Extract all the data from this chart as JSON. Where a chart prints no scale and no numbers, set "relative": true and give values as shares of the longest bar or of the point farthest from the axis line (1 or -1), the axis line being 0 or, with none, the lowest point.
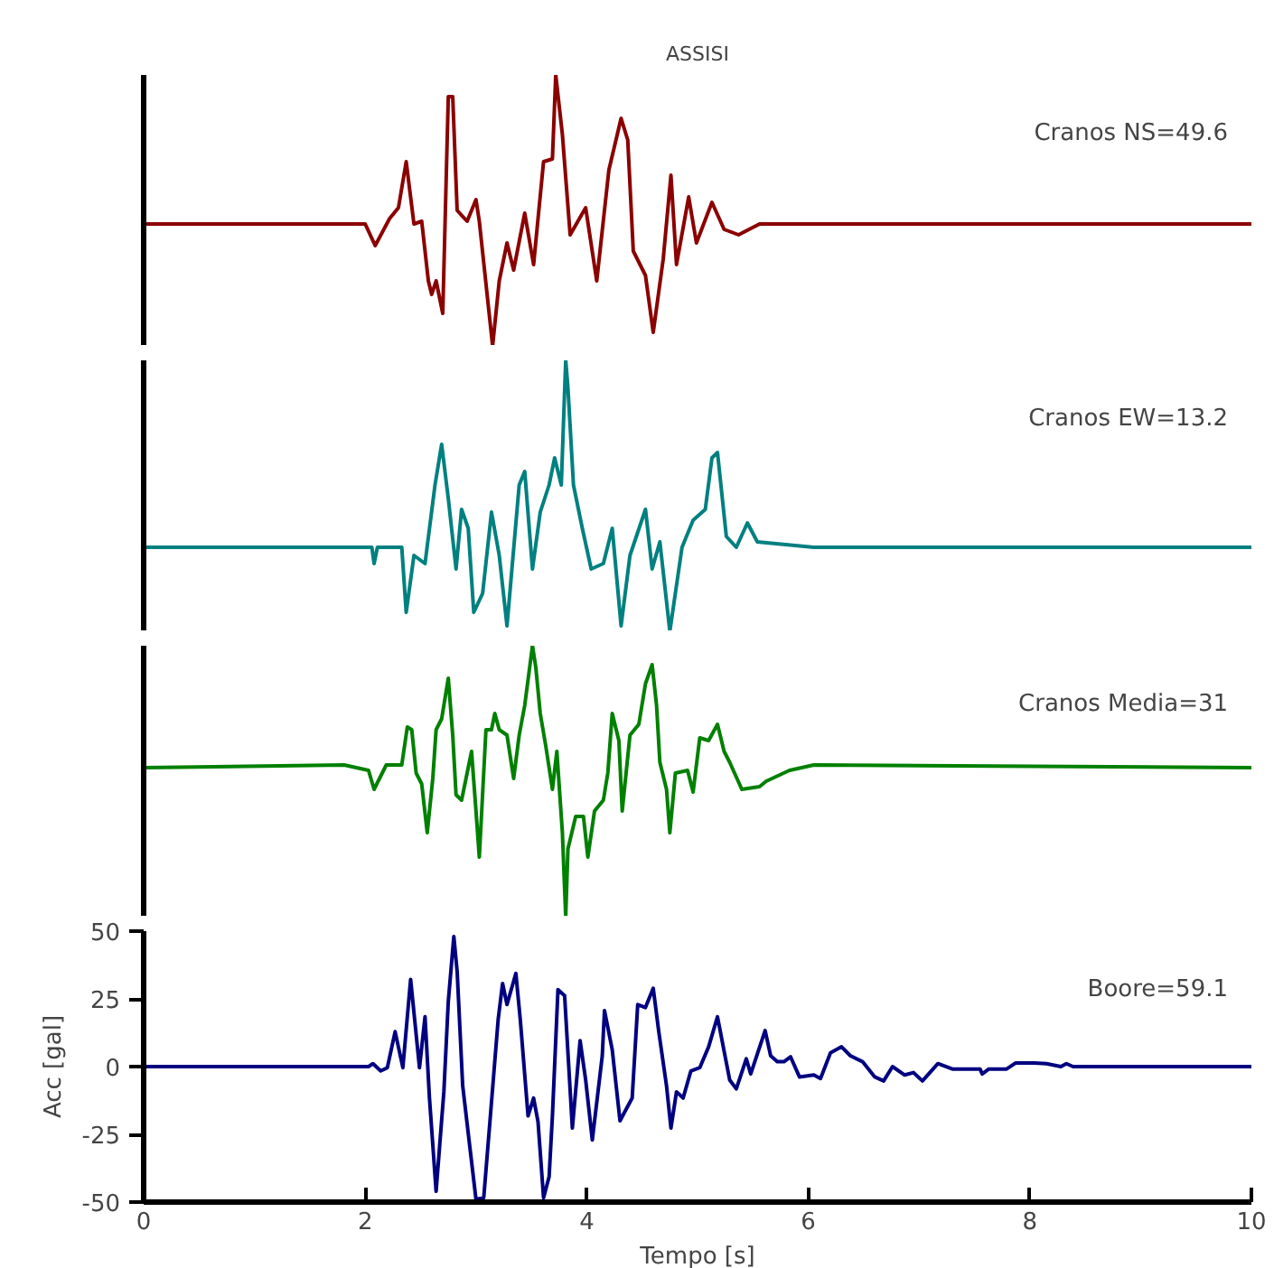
{
  "chart_data": [
    {
      "type": "line",
      "title": "ASSISI",
      "xlim": [
        0,
        10
      ],
      "relative": true,
      "tick_labels": false,
      "annotations": [
        "Cranos NS=49.6"
      ],
      "x": [
        0,
        1.81,
        2.0,
        2.09,
        2.22,
        2.3,
        2.37,
        2.44,
        2.51,
        2.57,
        2.6,
        2.64,
        2.7,
        2.75,
        2.79,
        2.83,
        2.92,
        3.0,
        3.03,
        3.15,
        3.21,
        3.28,
        3.34,
        3.44,
        3.52,
        3.61,
        3.69,
        3.72,
        3.78,
        3.85,
        3.99,
        4.09,
        4.2,
        4.31,
        4.37,
        4.42,
        4.53,
        4.6,
        4.69,
        4.76,
        4.81,
        4.92,
        4.99,
        5.13,
        5.24,
        5.37,
        5.56,
        6.05,
        10
      ],
      "series": [
        {
          "color": "#8b0000",
          "values": [
            0.45,
            0.45,
            0.45,
            0.37,
            0.47,
            0.51,
            0.68,
            0.45,
            0.46,
            0.24,
            0.19,
            0.24,
            0.12,
            0.92,
            0.92,
            0.5,
            0.46,
            0.54,
            0.46,
            0,
            0.24,
            0.38,
            0.28,
            0.49,
            0.3,
            0.68,
            0.69,
            1,
            0.78,
            0.41,
            0.51,
            0.24,
            0.65,
            0.84,
            0.76,
            0.35,
            0.26,
            0.05,
            0.32,
            0.63,
            0.3,
            0.55,
            0.38,
            0.53,
            0.43,
            0.41,
            0.45,
            0.45,
            0.45
          ]
        }
      ]
    },
    {
      "type": "line",
      "xlim": [
        0,
        10
      ],
      "relative": true,
      "tick_labels": false,
      "annotations": [
        "Cranos EW=13.2"
      ],
      "x": [
        0,
        1.81,
        2.06,
        2.08,
        2.11,
        2.33,
        2.37,
        2.44,
        2.54,
        2.63,
        2.69,
        2.75,
        2.82,
        2.87,
        2.93,
        2.98,
        3.06,
        3.14,
        3.21,
        3.28,
        3.39,
        3.44,
        3.51,
        3.58,
        3.66,
        3.71,
        3.77,
        3.81,
        3.83,
        3.88,
        3.96,
        4.04,
        4.15,
        4.23,
        4.31,
        4.39,
        4.53,
        4.59,
        4.66,
        4.75,
        4.86,
        4.96,
        5.07,
        5.13,
        5.18,
        5.26,
        5.35,
        5.45,
        5.54,
        6.05,
        10
      ],
      "series": [
        {
          "color": "#008080",
          "values": [
            0.31,
            0.31,
            0.31,
            0.25,
            0.31,
            0.31,
            0.07,
            0.28,
            0.25,
            0.54,
            0.69,
            0.49,
            0.23,
            0.45,
            0.38,
            0.07,
            0.14,
            0.44,
            0.28,
            0.02,
            0.54,
            0.59,
            0.23,
            0.44,
            0.54,
            0.64,
            0.54,
            1,
            0.9,
            0.54,
            0.38,
            0.23,
            0.25,
            0.38,
            0.02,
            0.28,
            0.45,
            0.23,
            0.33,
            0,
            0.31,
            0.41,
            0.45,
            0.64,
            0.66,
            0.35,
            0.31,
            0.4,
            0.33,
            0.31,
            0.31
          ]
        }
      ]
    },
    {
      "type": "line",
      "xlim": [
        0,
        10
      ],
      "relative": true,
      "tick_labels": false,
      "annotations": [
        "Cranos Media=31"
      ],
      "x": [
        0,
        1.81,
        2.03,
        2.08,
        2.19,
        2.33,
        2.38,
        2.42,
        2.46,
        2.51,
        2.56,
        2.61,
        2.64,
        2.69,
        2.75,
        2.79,
        2.82,
        2.87,
        2.93,
        2.96,
        3.0,
        3.03,
        3.09,
        3.14,
        3.17,
        3.21,
        3.28,
        3.34,
        3.39,
        3.44,
        3.51,
        3.54,
        3.58,
        3.63,
        3.69,
        3.73,
        3.78,
        3.81,
        3.83,
        3.9,
        3.97,
        4.01,
        4.07,
        4.15,
        4.19,
        4.23,
        4.29,
        4.32,
        4.39,
        4.47,
        4.53,
        4.59,
        4.63,
        4.66,
        4.72,
        4.75,
        4.8,
        4.91,
        4.96,
        5.02,
        5.1,
        5.18,
        5.24,
        5.29,
        5.4,
        5.56,
        5.62,
        5.83,
        6.05,
        10
      ],
      "series": [
        {
          "color": "#008000",
          "values": [
            0.55,
            0.56,
            0.54,
            0.47,
            0.56,
            0.56,
            0.7,
            0.69,
            0.53,
            0.49,
            0.31,
            0.51,
            0.69,
            0.73,
            0.88,
            0.67,
            0.45,
            0.43,
            0.55,
            0.61,
            0.39,
            0.22,
            0.69,
            0.69,
            0.75,
            0.69,
            0.67,
            0.51,
            0.67,
            0.78,
            1,
            0.92,
            0.75,
            0.63,
            0.47,
            0.61,
            0.31,
            0,
            0.25,
            0.37,
            0.37,
            0.22,
            0.39,
            0.43,
            0.53,
            0.75,
            0.65,
            0.39,
            0.67,
            0.71,
            0.86,
            0.93,
            0.78,
            0.57,
            0.47,
            0.31,
            0.53,
            0.54,
            0.46,
            0.66,
            0.65,
            0.71,
            0.61,
            0.57,
            0.47,
            0.48,
            0.5,
            0.54,
            0.56,
            0.55
          ]
        }
      ]
    },
    {
      "type": "line",
      "xlabel": "Tempo [s]",
      "ylabel": "Acc [gal]",
      "xlim": [
        0,
        10
      ],
      "ylim": [
        -50,
        50
      ],
      "xticks": [
        0,
        2,
        4,
        6,
        8,
        10
      ],
      "yticks": [
        -50,
        -25,
        0,
        25,
        50
      ],
      "annotations": [
        "Boore=59.1"
      ],
      "x": [
        0,
        1.81,
        2.03,
        2.07,
        2.14,
        2.2,
        2.27,
        2.34,
        2.41,
        2.49,
        2.54,
        2.58,
        2.64,
        2.71,
        2.75,
        2.8,
        2.83,
        2.88,
        2.95,
        3.0,
        3.07,
        3.13,
        3.2,
        3.24,
        3.28,
        3.36,
        3.4,
        3.47,
        3.52,
        3.56,
        3.61,
        3.66,
        3.69,
        3.74,
        3.8,
        3.87,
        3.94,
        3.99,
        4.05,
        4.14,
        4.16,
        4.23,
        4.3,
        4.41,
        4.46,
        4.53,
        4.6,
        4.65,
        4.72,
        4.76,
        4.81,
        4.87,
        4.94,
        5.02,
        5.1,
        5.18,
        5.29,
        5.35,
        5.44,
        5.48,
        5.61,
        5.66,
        5.72,
        5.78,
        5.84,
        5.92,
        6.05,
        6.11,
        6.2,
        6.3,
        6.38,
        6.49,
        6.6,
        6.68,
        6.76,
        6.87,
        6.95,
        7.03,
        7.17,
        7.3,
        7.55,
        7.57,
        7.63,
        7.79,
        7.87,
        8.04,
        8.15,
        8.28,
        8.33,
        8.39,
        9.48,
        10
      ],
      "series": [
        {
          "color": "#000080",
          "values": [
            0,
            0,
            0,
            1.1,
            -1.6,
            -0.4,
            12.9,
            -0.4,
            32.2,
            -0.4,
            18.4,
            -11.6,
            -46,
            -9.3,
            24,
            48,
            35.1,
            -7.1,
            -31.6,
            -49,
            -48.4,
            -18.2,
            17.3,
            30.7,
            22.9,
            34.4,
            17.3,
            -18.2,
            -11.6,
            -20.4,
            -48.4,
            -40.7,
            -18.2,
            28.4,
            26.2,
            -22.7,
            9.6,
            -4.9,
            -27.1,
            4,
            20.7,
            6.2,
            -20,
            -11.6,
            22.9,
            21.8,
            28.9,
            12.9,
            -7.1,
            -22.7,
            -9.3,
            -11.6,
            -1.6,
            -0.4,
            7.3,
            18.4,
            -4.9,
            -8.2,
            2.9,
            -2.7,
            13.3,
            4,
            1.8,
            1.8,
            3.6,
            -3.8,
            -3.1,
            -4.4,
            5.1,
            7.3,
            4,
            1.8,
            -3.8,
            -5.3,
            0,
            -3.1,
            -2.2,
            -5.3,
            1.1,
            -0.9,
            -0.9,
            -2.7,
            -0.9,
            -0.9,
            1.3,
            1.3,
            1.1,
            0,
            1.1,
            0,
            0,
            0
          ]
        }
      ]
    }
  ]
}
